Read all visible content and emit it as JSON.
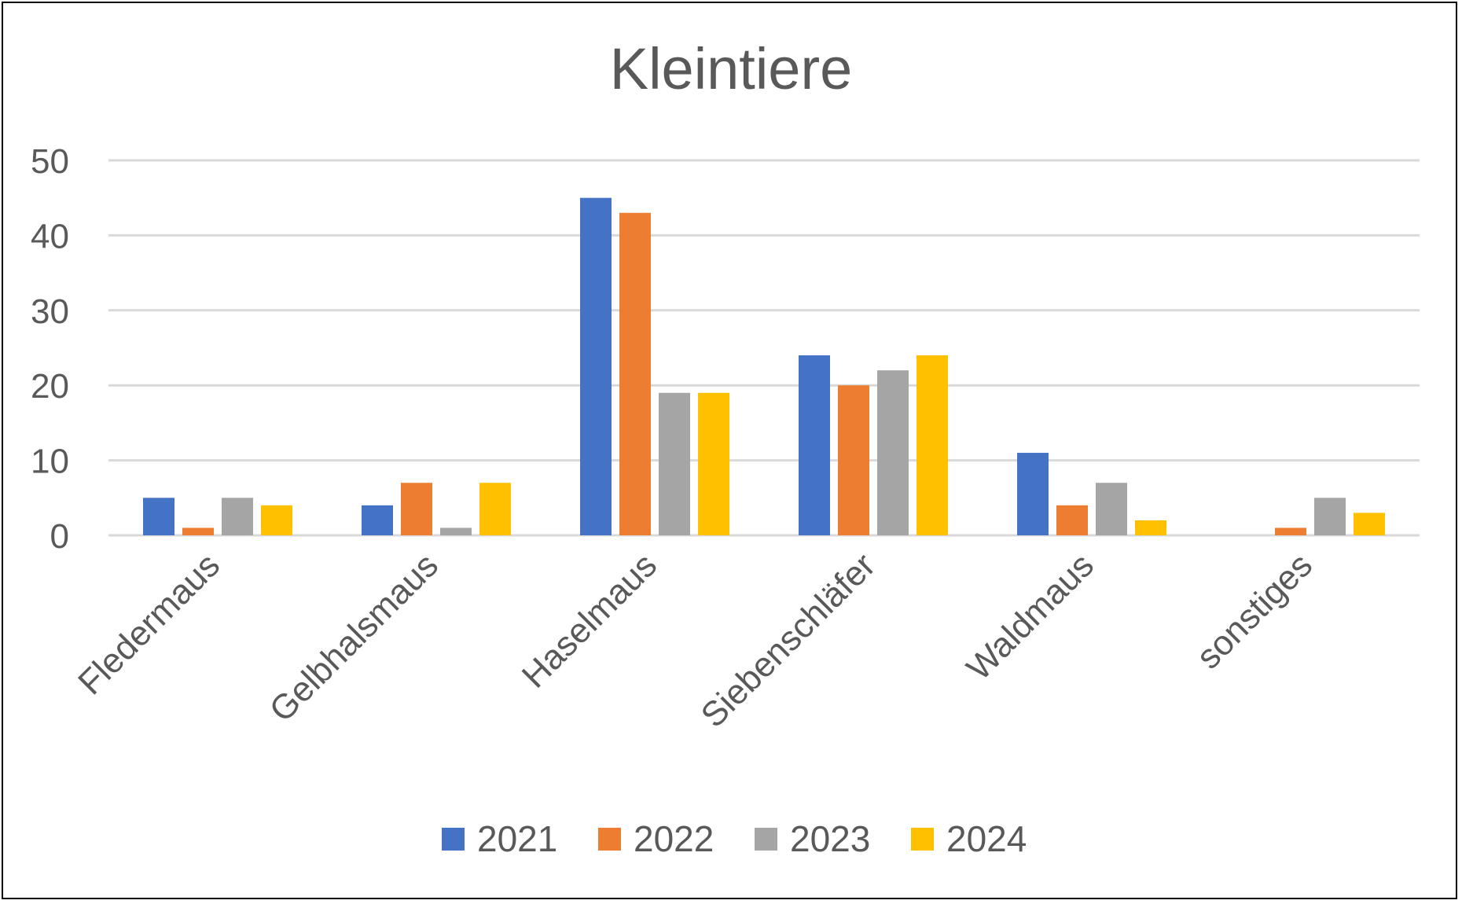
{
  "chart_data": {
    "type": "bar",
    "title": "Kleintiere",
    "xlabel": "",
    "ylabel": "",
    "ylim": [
      0,
      50
    ],
    "yticks": [
      "0",
      "10",
      "20",
      "30",
      "40",
      "50"
    ],
    "grid": true,
    "legend_position": "bottom",
    "categories": [
      "Fledermaus",
      "Gelbhalsmaus",
      "Haselmaus",
      "Siebenschläfer",
      "Waldmaus",
      "sonstiges"
    ],
    "series": [
      {
        "name": "2021",
        "color": "#4472C4",
        "values": [
          5,
          4,
          45,
          24,
          11,
          0
        ]
      },
      {
        "name": "2022",
        "color": "#ED7D31",
        "values": [
          1,
          7,
          43,
          20,
          4,
          1
        ]
      },
      {
        "name": "2023",
        "color": "#A5A5A5",
        "values": [
          5,
          1,
          19,
          22,
          7,
          5
        ]
      },
      {
        "name": "2024",
        "color": "#FFC000",
        "values": [
          4,
          7,
          19,
          24,
          2,
          3
        ]
      }
    ]
  }
}
